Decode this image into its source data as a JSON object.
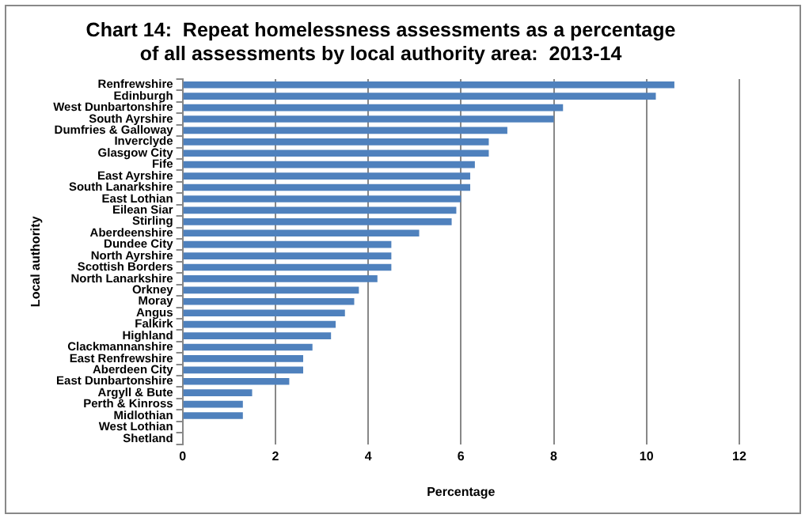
{
  "chart_data": {
    "type": "bar",
    "orientation": "horizontal",
    "title": "Chart 14:  Repeat homelessness assessments as a percentage of all assessments by local authority area:  2013-14",
    "xlabel": "Percentage",
    "ylabel": "Local authority",
    "categories": [
      "Renfrewshire",
      "Edinburgh",
      "West Dunbartonshire",
      "South Ayrshire",
      "Dumfries & Galloway",
      "Inverclyde",
      "Glasgow City",
      "Fife",
      "East Ayrshire",
      "South Lanarkshire",
      "East Lothian",
      "Eilean Siar",
      "Stirling",
      "Aberdeenshire",
      "Dundee City",
      "North Ayrshire",
      "Scottish Borders",
      "North Lanarkshire",
      "Orkney",
      "Moray",
      "Angus",
      "Falkirk",
      "Highland",
      "Clackmannanshire",
      "East Renfrewshire",
      "Aberdeen City",
      "East Dunbartonshire",
      "Argyll & Bute",
      "Perth & Kinross",
      "Midlothian",
      "West Lothian",
      "Shetland"
    ],
    "values": [
      10.6,
      10.2,
      8.2,
      8.0,
      7.0,
      6.6,
      6.6,
      6.3,
      6.2,
      6.2,
      6.0,
      5.9,
      5.8,
      5.1,
      4.5,
      4.5,
      4.5,
      4.2,
      3.8,
      3.7,
      3.5,
      3.3,
      3.2,
      2.8,
      2.6,
      2.6,
      2.3,
      1.5,
      1.3,
      1.3,
      0,
      0
    ],
    "color": "#4f81bd",
    "xlim": [
      0,
      12
    ],
    "xticks": [
      0,
      2,
      4,
      6,
      8,
      10,
      12
    ],
    "grid": "x",
    "legend": false
  }
}
